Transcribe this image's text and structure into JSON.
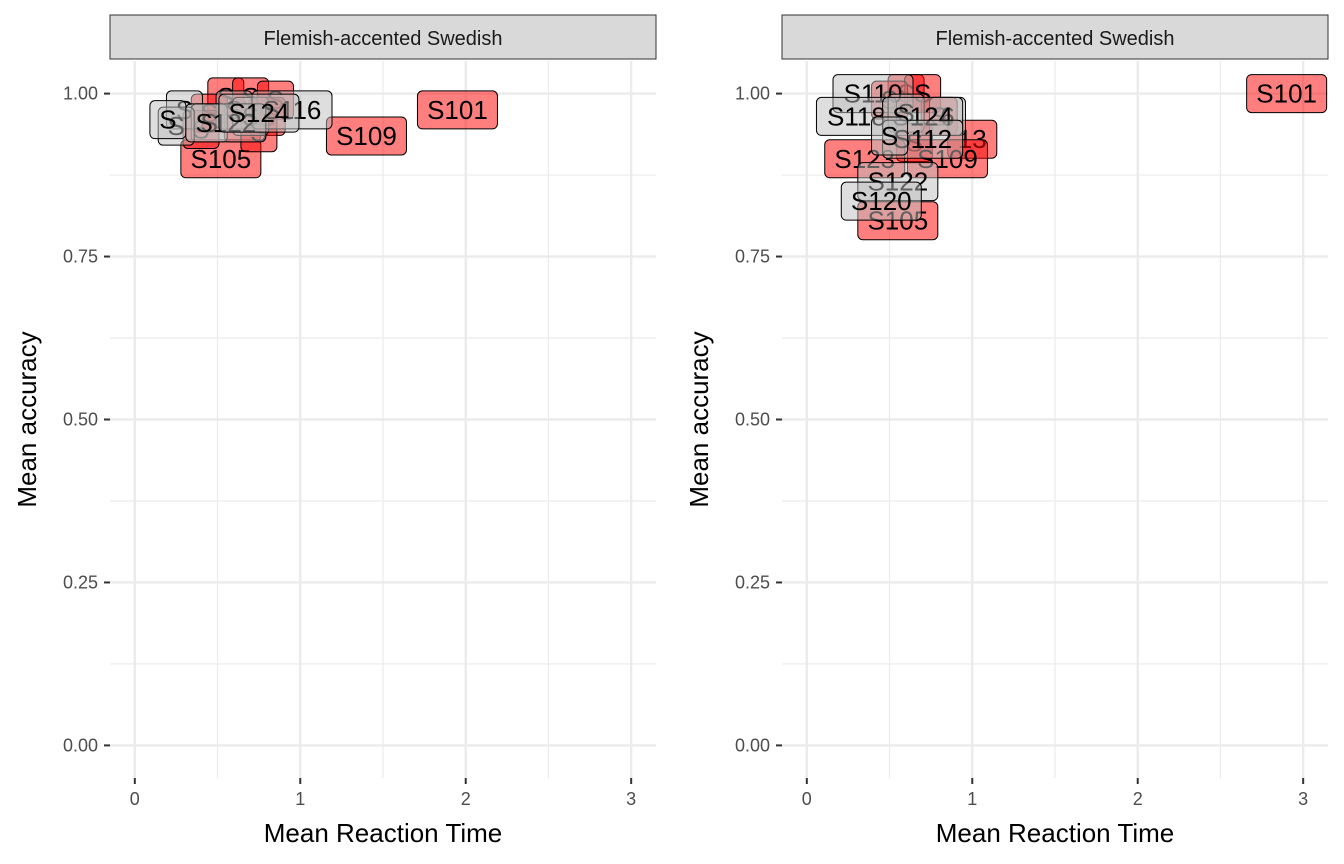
{
  "colors": {
    "group_red": "#ff0000",
    "group_grey": "#bebebe",
    "strip_fill": "#d9d9d9",
    "grid": "#ebebeb"
  },
  "chart_data": [
    {
      "type": "scatter",
      "facet_title": "Flemish-accented Swedish",
      "xlabel": "Mean Reaction Time",
      "ylabel": "Mean accuracy",
      "xlim": [
        -0.15,
        3.15
      ],
      "ylim": [
        -0.05,
        1.05
      ],
      "x_ticks": [
        0,
        1,
        2,
        3
      ],
      "x_tick_labels": [
        "0",
        "1",
        "2",
        "3"
      ],
      "y_ticks": [
        0,
        0.25,
        0.5,
        0.75,
        1
      ],
      "y_tick_labels": [
        "0.00",
        "0.25",
        "0.50",
        "0.75",
        "1.00"
      ],
      "grid": true,
      "points": [
        {
          "label": "S101",
          "x": 1.95,
          "y": 0.975,
          "group": "red"
        },
        {
          "label": "S109",
          "x": 1.4,
          "y": 0.935,
          "group": "red"
        },
        {
          "label": "S105",
          "x": 0.52,
          "y": 0.9,
          "group": "red"
        },
        {
          "label": "S",
          "x": 0.55,
          "y": 0.995,
          "group": "red"
        },
        {
          "label": "S",
          "x": 0.7,
          "y": 0.995,
          "group": "red"
        },
        {
          "label": "S",
          "x": 0.85,
          "y": 0.99,
          "group": "red"
        },
        {
          "label": "S",
          "x": 0.45,
          "y": 0.97,
          "group": "red"
        },
        {
          "label": "S",
          "x": 0.8,
          "y": 0.965,
          "group": "red"
        },
        {
          "label": "S",
          "x": 0.65,
          "y": 0.955,
          "group": "red"
        },
        {
          "label": "S",
          "x": 0.4,
          "y": 0.945,
          "group": "red"
        },
        {
          "label": "S",
          "x": 0.75,
          "y": 0.94,
          "group": "red"
        },
        {
          "label": "S",
          "x": 0.3,
          "y": 0.975,
          "group": "grey"
        },
        {
          "label": "S",
          "x": 0.6,
          "y": 0.975,
          "group": "grey"
        },
        {
          "label": "S",
          "x": 0.7,
          "y": 0.965,
          "group": "grey"
        },
        {
          "label": "S",
          "x": 0.45,
          "y": 0.955,
          "group": "grey"
        },
        {
          "label": "S",
          "x": 0.25,
          "y": 0.95,
          "group": "grey"
        },
        {
          "label": "S116",
          "x": 0.95,
          "y": 0.975,
          "group": "grey"
        },
        {
          "label": "S",
          "x": 0.2,
          "y": 0.96,
          "group": "grey"
        },
        {
          "label": "S122",
          "x": 0.55,
          "y": 0.955,
          "group": "grey"
        },
        {
          "label": "S124",
          "x": 0.75,
          "y": 0.97,
          "group": "grey"
        }
      ]
    },
    {
      "type": "scatter",
      "facet_title": "Flemish-accented Swedish",
      "xlabel": "Mean Reaction Time",
      "ylabel": "Mean accuracy",
      "xlim": [
        -0.15,
        3.15
      ],
      "ylim": [
        -0.05,
        1.05
      ],
      "x_ticks": [
        0,
        1,
        2,
        3
      ],
      "x_tick_labels": [
        "0",
        "1",
        "2",
        "3"
      ],
      "y_ticks": [
        0,
        0.25,
        0.5,
        0.75,
        1
      ],
      "y_tick_labels": [
        "0.00",
        "0.25",
        "0.50",
        "0.75",
        "1.00"
      ],
      "grid": true,
      "points": [
        {
          "label": "S101",
          "x": 2.9,
          "y": 1.0,
          "group": "red"
        },
        {
          "label": "S",
          "x": 0.6,
          "y": 1.0,
          "group": "red"
        },
        {
          "label": "S",
          "x": 0.7,
          "y": 1.0,
          "group": "red"
        },
        {
          "label": "S",
          "x": 0.5,
          "y": 0.99,
          "group": "red"
        },
        {
          "label": "S",
          "x": 0.8,
          "y": 0.965,
          "group": "red"
        },
        {
          "label": "13",
          "x": 1.0,
          "y": 0.93,
          "group": "red"
        },
        {
          "label": "S",
          "x": 0.65,
          "y": 0.925,
          "group": "red"
        },
        {
          "label": "S109",
          "x": 0.85,
          "y": 0.9,
          "group": "red"
        },
        {
          "label": "S123",
          "x": 0.35,
          "y": 0.9,
          "group": "red"
        },
        {
          "label": "S105",
          "x": 0.55,
          "y": 0.805,
          "group": "red"
        },
        {
          "label": "S110",
          "x": 0.4,
          "y": 1.0,
          "group": "grey"
        },
        {
          "label": "S118",
          "x": 0.3,
          "y": 0.965,
          "group": "grey"
        },
        {
          "label": "6",
          "x": 0.85,
          "y": 0.965,
          "group": "grey"
        },
        {
          "label": "S",
          "x": 0.6,
          "y": 0.97,
          "group": "grey"
        },
        {
          "label": "S124",
          "x": 0.7,
          "y": 0.965,
          "group": "grey"
        },
        {
          "label": "S112",
          "x": 0.7,
          "y": 0.93,
          "group": "grey"
        },
        {
          "label": "S",
          "x": 0.5,
          "y": 0.935,
          "group": "grey"
        },
        {
          "label": "S122",
          "x": 0.55,
          "y": 0.865,
          "group": "grey"
        },
        {
          "label": "S120",
          "x": 0.45,
          "y": 0.835,
          "group": "grey"
        }
      ]
    }
  ]
}
